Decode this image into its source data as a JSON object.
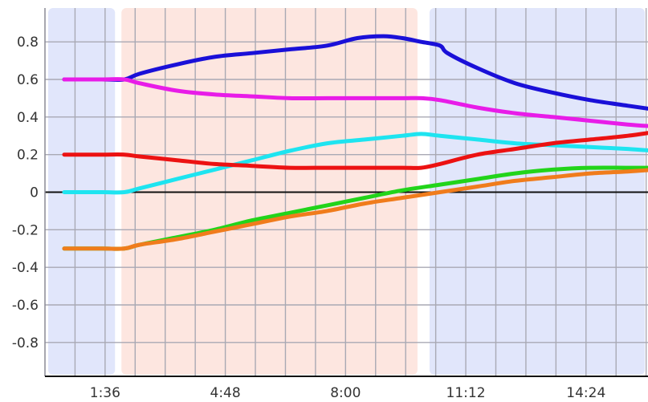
{
  "chart_data": {
    "type": "line",
    "title": "",
    "xlabel": "",
    "ylabel": "",
    "x_unit": "minutes",
    "xlim": [
      0,
      16.05
    ],
    "ylim": [
      -0.98,
      0.98
    ],
    "x_ticks": [
      {
        "value": 1.6,
        "label": "1:36"
      },
      {
        "value": 4.8,
        "label": "4:48"
      },
      {
        "value": 8.0,
        "label": "8:00"
      },
      {
        "value": 11.2,
        "label": "11:12"
      },
      {
        "value": 14.4,
        "label": "14:24"
      }
    ],
    "y_ticks": [
      {
        "value": 0.8,
        "label": "0.8"
      },
      {
        "value": 0.6,
        "label": "0.6"
      },
      {
        "value": 0.4,
        "label": "0.4"
      },
      {
        "value": 0.2,
        "label": "0.2"
      },
      {
        "value": 0.0,
        "label": "0"
      },
      {
        "value": -0.2,
        "label": "-0.2"
      },
      {
        "value": -0.4,
        "label": "-0.4"
      },
      {
        "value": -0.6,
        "label": "-0.6"
      },
      {
        "value": -0.8,
        "label": "-0.8"
      }
    ],
    "grid": true,
    "zero_line": true,
    "background_bands": [
      {
        "from": 0.0,
        "to": 1.95,
        "color": "#e1e6fb"
      },
      {
        "from": 1.95,
        "to": 10.0,
        "color": "#fde6e0"
      },
      {
        "from": 10.15,
        "to": 16.05,
        "color": "#e1e6fb"
      }
    ],
    "series": [
      {
        "color": "#1a10d8",
        "x": [
          0,
          1.0,
          1.6,
          2.0,
          3.0,
          4.0,
          5.0,
          6.0,
          7.0,
          7.8,
          8.5,
          9.0,
          9.5,
          10.0,
          10.2,
          11.0,
          12.0,
          13.0,
          14.0,
          15.0,
          15.7
        ],
        "y": [
          0.6,
          0.6,
          0.6,
          0.63,
          0.68,
          0.72,
          0.74,
          0.76,
          0.78,
          0.82,
          0.83,
          0.82,
          0.8,
          0.78,
          0.74,
          0.66,
          0.58,
          0.53,
          0.49,
          0.46,
          0.44
        ]
      },
      {
        "color": "#e81ce8",
        "x": [
          0,
          1.0,
          1.6,
          2.0,
          3.0,
          4.0,
          5.0,
          6.0,
          7.0,
          8.0,
          9.0,
          9.5,
          10.0,
          11.0,
          12.0,
          13.0,
          14.0,
          15.0,
          15.7
        ],
        "y": [
          0.6,
          0.6,
          0.6,
          0.58,
          0.54,
          0.52,
          0.51,
          0.5,
          0.5,
          0.5,
          0.5,
          0.5,
          0.49,
          0.45,
          0.42,
          0.4,
          0.38,
          0.36,
          0.35
        ]
      },
      {
        "color": "#1ee4f0",
        "x": [
          0,
          1.0,
          1.6,
          2.0,
          3.0,
          4.0,
          5.0,
          6.0,
          7.0,
          8.0,
          9.0,
          9.5,
          10.0,
          11.0,
          12.0,
          13.0,
          14.0,
          15.0,
          15.7
        ],
        "y": [
          0.0,
          0.0,
          0.0,
          0.02,
          0.07,
          0.12,
          0.17,
          0.22,
          0.26,
          0.28,
          0.3,
          0.31,
          0.3,
          0.28,
          0.26,
          0.25,
          0.24,
          0.23,
          0.22
        ]
      },
      {
        "color": "#ec1212",
        "x": [
          0,
          1.0,
          1.6,
          2.0,
          3.0,
          4.0,
          5.0,
          6.0,
          7.0,
          8.0,
          9.0,
          9.5,
          10.0,
          11.0,
          12.0,
          13.0,
          14.0,
          15.0,
          15.7
        ],
        "y": [
          0.2,
          0.2,
          0.2,
          0.19,
          0.17,
          0.15,
          0.14,
          0.13,
          0.13,
          0.13,
          0.13,
          0.13,
          0.15,
          0.2,
          0.23,
          0.26,
          0.28,
          0.3,
          0.32
        ]
      },
      {
        "color": "#22d41a",
        "x": [
          0,
          1.0,
          1.6,
          2.0,
          3.0,
          4.0,
          5.0,
          6.0,
          7.0,
          8.0,
          9.0,
          10.0,
          11.0,
          12.0,
          13.0,
          14.0,
          15.0,
          15.7
        ],
        "y": [
          -0.3,
          -0.3,
          -0.3,
          -0.28,
          -0.24,
          -0.2,
          -0.15,
          -0.11,
          -0.07,
          -0.03,
          0.01,
          0.04,
          0.07,
          0.1,
          0.12,
          0.13,
          0.13,
          0.13
        ]
      },
      {
        "color": "#f07c1c",
        "x": [
          0,
          1.0,
          1.6,
          2.0,
          3.0,
          4.0,
          5.0,
          6.0,
          7.0,
          8.0,
          9.0,
          10.0,
          11.0,
          12.0,
          13.0,
          14.0,
          15.0,
          15.7
        ],
        "y": [
          -0.3,
          -0.3,
          -0.3,
          -0.28,
          -0.25,
          -0.21,
          -0.17,
          -0.13,
          -0.1,
          -0.06,
          -0.03,
          0.0,
          0.03,
          0.06,
          0.08,
          0.1,
          0.11,
          0.12
        ]
      }
    ]
  }
}
